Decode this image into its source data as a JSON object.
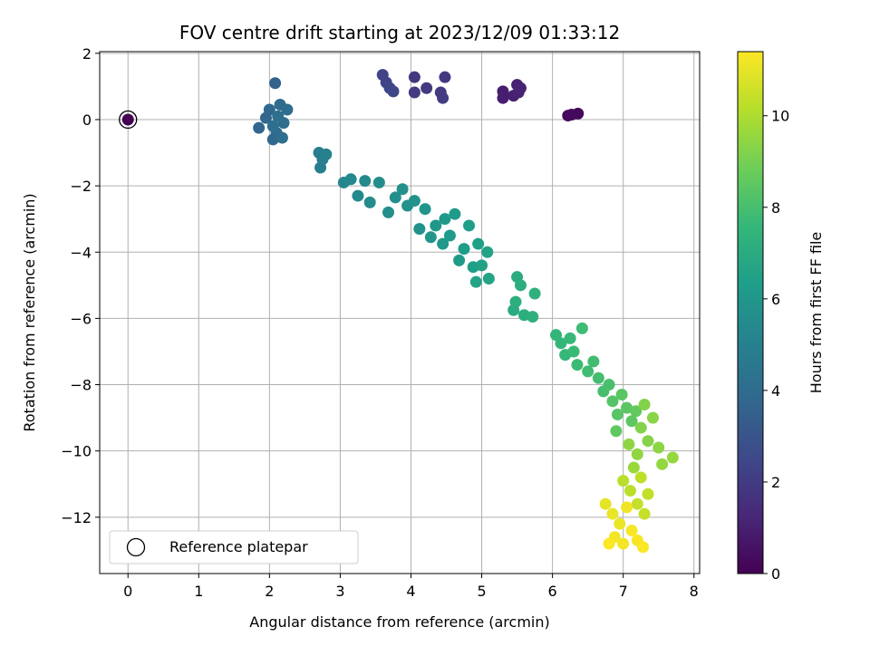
{
  "chart_data": {
    "type": "scatter",
    "title": "FOV centre drift starting at 2023/12/09 01:33:12",
    "xlabel": "Angular distance from reference (arcmin)",
    "ylabel": "Rotation from reference (arcmin)",
    "xlim": [
      -0.4,
      8.08
    ],
    "ylim": [
      -13.7,
      2.05
    ],
    "xticks": [
      0,
      1,
      2,
      3,
      4,
      5,
      6,
      7,
      8
    ],
    "yticks": [
      2,
      0,
      -2,
      -4,
      -6,
      -8,
      -10,
      -12
    ],
    "grid": true,
    "legend": {
      "position": "lower-left",
      "entries": [
        "Reference platepar"
      ]
    },
    "reference_point": {
      "x": 0,
      "y": 0
    },
    "colorbar": {
      "label": "Hours from first FF file",
      "colormap": "viridis",
      "range": [
        0,
        11.4
      ],
      "ticks": [
        0,
        2,
        4,
        6,
        8,
        10
      ]
    },
    "colormap_stops": [
      "#440154",
      "#482878",
      "#3e4989",
      "#31688e",
      "#26828e",
      "#1f9e89",
      "#35b779",
      "#6ece58",
      "#b5de2b",
      "#fde725"
    ],
    "points": [
      {
        "x": 0,
        "y": 0,
        "t": 0
      },
      {
        "x": 6.22,
        "y": 0.12,
        "t": 0.2
      },
      {
        "x": 6.36,
        "y": 0.18,
        "t": 0.25
      },
      {
        "x": 6.27,
        "y": 0.15,
        "t": 0.3
      },
      {
        "x": 5.3,
        "y": 0.85,
        "t": 0.9
      },
      {
        "x": 5.3,
        "y": 0.65,
        "t": 0.95
      },
      {
        "x": 5.45,
        "y": 0.72,
        "t": 1.0
      },
      {
        "x": 5.5,
        "y": 1.05,
        "t": 1.05
      },
      {
        "x": 5.55,
        "y": 0.95,
        "t": 1.1
      },
      {
        "x": 5.52,
        "y": 0.82,
        "t": 1.12
      },
      {
        "x": 4.05,
        "y": 1.28,
        "t": 1.8
      },
      {
        "x": 4.48,
        "y": 1.28,
        "t": 1.85
      },
      {
        "x": 4.22,
        "y": 0.95,
        "t": 1.9
      },
      {
        "x": 4.05,
        "y": 0.82,
        "t": 1.95
      },
      {
        "x": 4.42,
        "y": 0.82,
        "t": 2.0
      },
      {
        "x": 4.45,
        "y": 0.65,
        "t": 2.05
      },
      {
        "x": 3.6,
        "y": 1.35,
        "t": 2.3
      },
      {
        "x": 3.65,
        "y": 1.12,
        "t": 2.35
      },
      {
        "x": 3.7,
        "y": 0.95,
        "t": 2.4
      },
      {
        "x": 3.75,
        "y": 0.85,
        "t": 2.45
      },
      {
        "x": 2.08,
        "y": 1.1,
        "t": 3.6
      },
      {
        "x": 1.85,
        "y": -0.25,
        "t": 3.7
      },
      {
        "x": 1.95,
        "y": 0.05,
        "t": 3.75
      },
      {
        "x": 2.0,
        "y": 0.3,
        "t": 3.8
      },
      {
        "x": 2.05,
        "y": -0.6,
        "t": 3.85
      },
      {
        "x": 2.1,
        "y": -0.4,
        "t": 3.9
      },
      {
        "x": 2.15,
        "y": 0.45,
        "t": 3.95
      },
      {
        "x": 2.2,
        "y": -0.1,
        "t": 4.0
      },
      {
        "x": 2.25,
        "y": 0.3,
        "t": 4.05
      },
      {
        "x": 2.18,
        "y": -0.55,
        "t": 4.1
      },
      {
        "x": 2.12,
        "y": 0.1,
        "t": 4.12
      },
      {
        "x": 2.05,
        "y": -0.2,
        "t": 4.15
      },
      {
        "x": 2.7,
        "y": -1.0,
        "t": 4.8
      },
      {
        "x": 2.75,
        "y": -1.2,
        "t": 4.85
      },
      {
        "x": 2.72,
        "y": -1.45,
        "t": 4.9
      },
      {
        "x": 2.8,
        "y": -1.05,
        "t": 4.95
      },
      {
        "x": 3.05,
        "y": -1.9,
        "t": 5.3
      },
      {
        "x": 3.15,
        "y": -1.8,
        "t": 5.35
      },
      {
        "x": 3.25,
        "y": -2.3,
        "t": 5.4
      },
      {
        "x": 3.35,
        "y": -1.85,
        "t": 5.45
      },
      {
        "x": 3.42,
        "y": -2.5,
        "t": 5.5
      },
      {
        "x": 3.55,
        "y": -1.9,
        "t": 5.55
      },
      {
        "x": 3.68,
        "y": -2.8,
        "t": 5.6
      },
      {
        "x": 3.78,
        "y": -2.35,
        "t": 5.65
      },
      {
        "x": 3.88,
        "y": -2.1,
        "t": 5.7
      },
      {
        "x": 3.95,
        "y": -2.6,
        "t": 5.75
      },
      {
        "x": 4.05,
        "y": -2.45,
        "t": 5.8
      },
      {
        "x": 4.12,
        "y": -3.3,
        "t": 5.85
      },
      {
        "x": 4.2,
        "y": -2.7,
        "t": 5.9
      },
      {
        "x": 4.28,
        "y": -3.55,
        "t": 5.95
      },
      {
        "x": 4.35,
        "y": -3.2,
        "t": 6.0
      },
      {
        "x": 4.45,
        "y": -3.75,
        "t": 6.05
      },
      {
        "x": 4.48,
        "y": -3.0,
        "t": 6.1
      },
      {
        "x": 4.55,
        "y": -3.5,
        "t": 6.15
      },
      {
        "x": 4.62,
        "y": -2.85,
        "t": 6.2
      },
      {
        "x": 4.68,
        "y": -4.25,
        "t": 6.25
      },
      {
        "x": 4.75,
        "y": -3.9,
        "t": 6.3
      },
      {
        "x": 4.82,
        "y": -3.2,
        "t": 6.35
      },
      {
        "x": 4.88,
        "y": -4.45,
        "t": 6.4
      },
      {
        "x": 4.95,
        "y": -3.75,
        "t": 6.45
      },
      {
        "x": 5.0,
        "y": -4.4,
        "t": 6.5
      },
      {
        "x": 5.08,
        "y": -4.0,
        "t": 6.55
      },
      {
        "x": 4.92,
        "y": -4.9,
        "t": 6.6
      },
      {
        "x": 5.1,
        "y": -4.8,
        "t": 6.65
      },
      {
        "x": 5.45,
        "y": -5.75,
        "t": 7.0
      },
      {
        "x": 5.5,
        "y": -4.75,
        "t": 7.05
      },
      {
        "x": 5.55,
        "y": -5.0,
        "t": 7.1
      },
      {
        "x": 5.48,
        "y": -5.5,
        "t": 7.12
      },
      {
        "x": 5.6,
        "y": -5.9,
        "t": 7.15
      },
      {
        "x": 5.75,
        "y": -5.25,
        "t": 7.2
      },
      {
        "x": 5.72,
        "y": -5.95,
        "t": 7.25
      },
      {
        "x": 6.05,
        "y": -6.5,
        "t": 7.5
      },
      {
        "x": 6.12,
        "y": -6.75,
        "t": 7.55
      },
      {
        "x": 6.18,
        "y": -7.1,
        "t": 7.6
      },
      {
        "x": 6.25,
        "y": -6.6,
        "t": 7.65
      },
      {
        "x": 6.3,
        "y": -7.0,
        "t": 7.7
      },
      {
        "x": 6.35,
        "y": -7.4,
        "t": 7.75
      },
      {
        "x": 6.42,
        "y": -6.3,
        "t": 7.8
      },
      {
        "x": 6.5,
        "y": -7.6,
        "t": 7.85
      },
      {
        "x": 6.58,
        "y": -7.3,
        "t": 7.9
      },
      {
        "x": 6.65,
        "y": -7.8,
        "t": 7.95
      },
      {
        "x": 6.72,
        "y": -8.2,
        "t": 8.0
      },
      {
        "x": 6.8,
        "y": -8.0,
        "t": 8.05
      },
      {
        "x": 6.85,
        "y": -8.5,
        "t": 8.3
      },
      {
        "x": 6.92,
        "y": -8.9,
        "t": 8.35
      },
      {
        "x": 6.98,
        "y": -8.3,
        "t": 8.4
      },
      {
        "x": 7.05,
        "y": -8.7,
        "t": 8.45
      },
      {
        "x": 7.12,
        "y": -9.1,
        "t": 8.5
      },
      {
        "x": 6.9,
        "y": -9.4,
        "t": 8.55
      },
      {
        "x": 7.18,
        "y": -8.8,
        "t": 8.6
      },
      {
        "x": 7.25,
        "y": -9.3,
        "t": 9.2
      },
      {
        "x": 7.3,
        "y": -8.6,
        "t": 9.25
      },
      {
        "x": 7.35,
        "y": -9.7,
        "t": 9.3
      },
      {
        "x": 7.42,
        "y": -9.0,
        "t": 9.35
      },
      {
        "x": 7.5,
        "y": -9.9,
        "t": 9.4
      },
      {
        "x": 7.08,
        "y": -9.8,
        "t": 9.45
      },
      {
        "x": 7.2,
        "y": -10.1,
        "t": 9.5
      },
      {
        "x": 7.55,
        "y": -10.4,
        "t": 9.55
      },
      {
        "x": 7.7,
        "y": -10.2,
        "t": 9.6
      },
      {
        "x": 7.15,
        "y": -10.5,
        "t": 9.65
      },
      {
        "x": 7.0,
        "y": -10.9,
        "t": 10.2
      },
      {
        "x": 7.1,
        "y": -11.2,
        "t": 10.25
      },
      {
        "x": 7.25,
        "y": -10.8,
        "t": 10.3
      },
      {
        "x": 7.35,
        "y": -11.3,
        "t": 10.35
      },
      {
        "x": 7.2,
        "y": -11.6,
        "t": 10.4
      },
      {
        "x": 7.3,
        "y": -11.9,
        "t": 10.45
      },
      {
        "x": 6.75,
        "y": -11.6,
        "t": 11.0
      },
      {
        "x": 6.85,
        "y": -11.9,
        "t": 11.05
      },
      {
        "x": 6.95,
        "y": -12.2,
        "t": 11.1
      },
      {
        "x": 7.05,
        "y": -11.7,
        "t": 11.15
      },
      {
        "x": 6.88,
        "y": -12.6,
        "t": 11.2
      },
      {
        "x": 7.0,
        "y": -12.8,
        "t": 11.25
      },
      {
        "x": 7.12,
        "y": -12.4,
        "t": 11.3
      },
      {
        "x": 7.2,
        "y": -12.7,
        "t": 11.32
      },
      {
        "x": 7.28,
        "y": -12.9,
        "t": 11.35
      },
      {
        "x": 6.8,
        "y": -12.8,
        "t": 11.38
      }
    ]
  }
}
